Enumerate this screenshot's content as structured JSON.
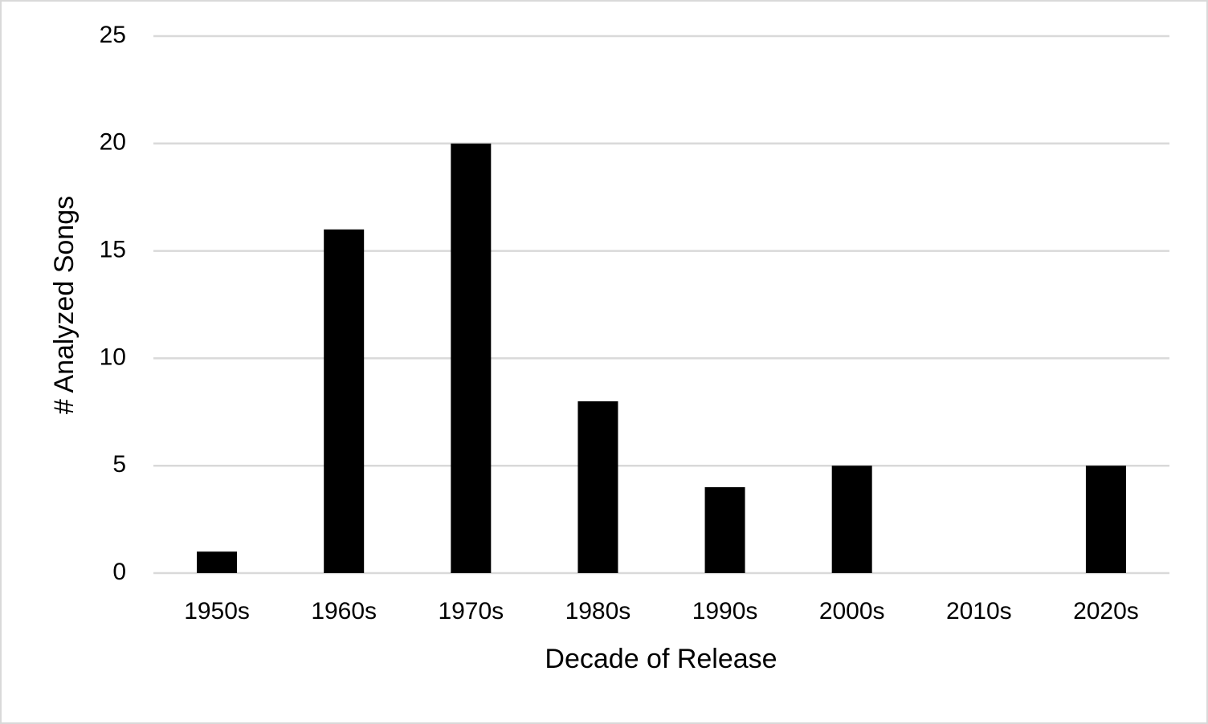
{
  "chart_data": {
    "type": "bar",
    "x_label": "Decade of Release",
    "y_label": "# Analyzed Songs",
    "categories": [
      "1950s",
      "1960s",
      "1970s",
      "1980s",
      "1990s",
      "2000s",
      "2010s",
      "2020s"
    ],
    "values": [
      1,
      16,
      20,
      8,
      4,
      5,
      0,
      5
    ],
    "color": "#000000",
    "ylim": [
      0,
      25
    ],
    "yticks": [
      0,
      5,
      10,
      15,
      20,
      25
    ],
    "grid": true
  }
}
